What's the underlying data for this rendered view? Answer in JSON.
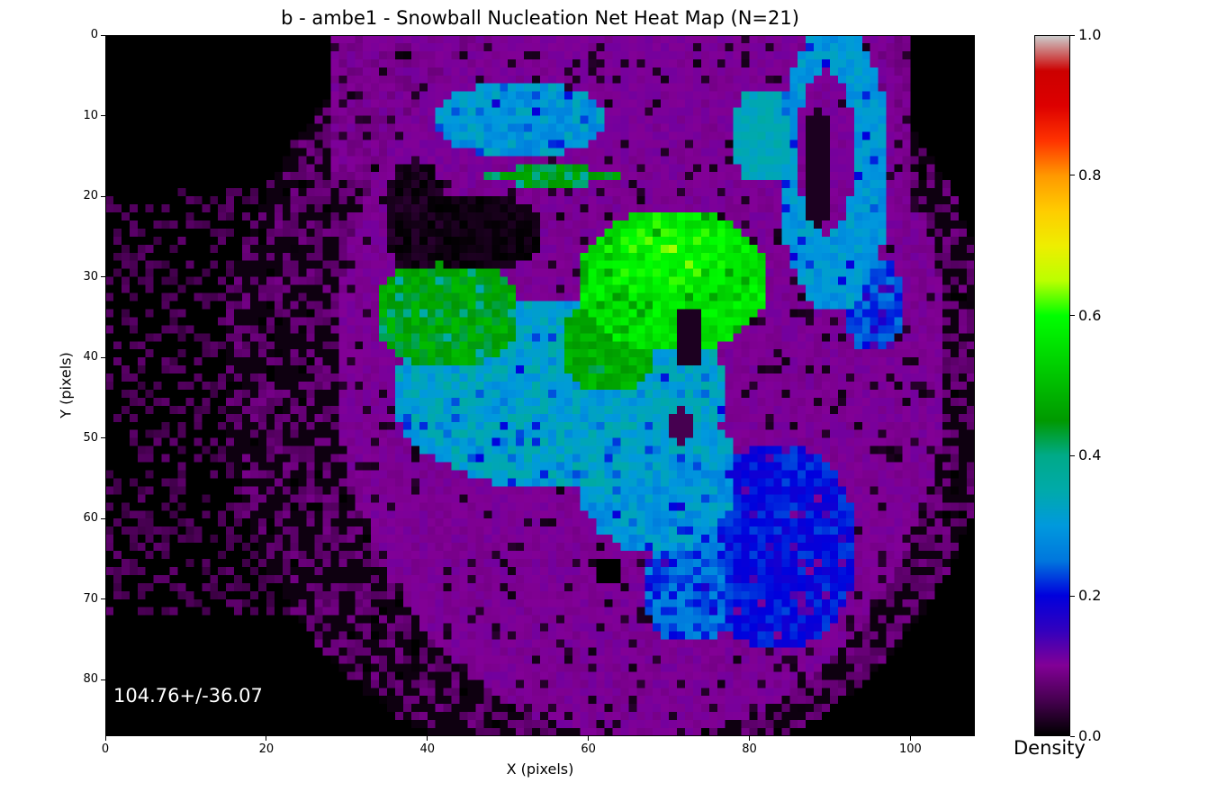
{
  "chart_data": {
    "type": "heatmap",
    "title": "b - ambe1 - Snowball Nucleation Net Heat Map (N=21)",
    "xlabel": "X (pixels)",
    "ylabel": "Y (pixels)",
    "xlim": [
      0,
      108
    ],
    "ylim": [
      0,
      87
    ],
    "y_inverted": true,
    "xticks": [
      0,
      20,
      40,
      60,
      80,
      100
    ],
    "yticks": [
      0,
      10,
      20,
      30,
      40,
      50,
      60,
      70,
      80
    ],
    "annotation": "104.76+/-36.07",
    "colorbar": {
      "label": "Density",
      "range": [
        0.0,
        1.0
      ],
      "ticks": [
        "0.0",
        "0.2",
        "0.4",
        "0.6",
        "0.8",
        "1.0"
      ],
      "colormap": "nipy_spectral"
    },
    "grid": false,
    "regions": [
      {
        "desc": "bright green peak",
        "x": [
          57,
          83
        ],
        "y": [
          21,
          38
        ],
        "value": 0.58
      },
      {
        "desc": "green/teal left lobe",
        "x": [
          32,
          56
        ],
        "y": [
          27,
          42
        ],
        "value": 0.43
      },
      {
        "desc": "cyan/teal central body",
        "x": [
          35,
          80
        ],
        "y": [
          38,
          58
        ],
        "value": 0.32
      },
      {
        "desc": "blue lower-right blob",
        "x": [
          74,
          90
        ],
        "y": [
          50,
          73
        ],
        "value": 0.2
      },
      {
        "desc": "cyan upper band",
        "x": [
          42,
          60
        ],
        "y": [
          5,
          15
        ],
        "value": 0.32
      },
      {
        "desc": "cyan right arc",
        "x": [
          84,
          100
        ],
        "y": [
          4,
          35
        ],
        "value": 0.3
      },
      {
        "desc": "purple halo",
        "x": [
          20,
          102
        ],
        "y": [
          0,
          87
        ],
        "value": 0.1
      },
      {
        "desc": "dark void",
        "x": [
          37,
          53
        ],
        "y": [
          17,
          31
        ],
        "value": 0.02
      }
    ]
  }
}
